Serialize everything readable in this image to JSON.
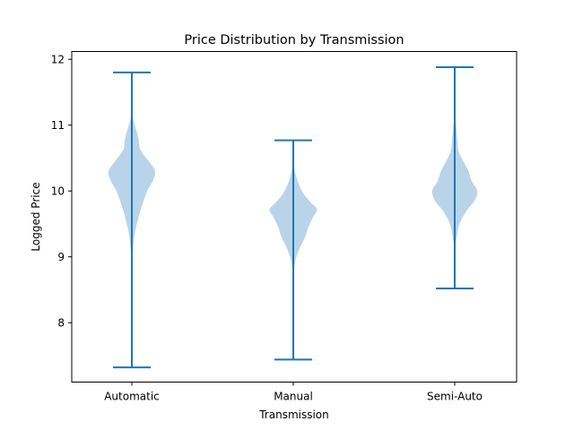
{
  "chart_data": {
    "type": "violin",
    "title": "Price Distribution by Transmission",
    "xlabel": "Transmission",
    "ylabel": "Logged Price",
    "categories": [
      "Automatic",
      "Manual",
      "Semi-Auto"
    ],
    "ylim": [
      7.1,
      12.1
    ],
    "yticks": [
      8,
      9,
      10,
      11,
      12
    ],
    "grid": false,
    "colors": {
      "body": "#b9d4e9",
      "line": "#1f77b4"
    },
    "series": [
      {
        "category": "Automatic",
        "min": 7.32,
        "max": 11.8,
        "profile": [
          [
            8.9,
            0.0
          ],
          [
            9.3,
            0.06
          ],
          [
            9.6,
            0.17
          ],
          [
            9.8,
            0.27
          ],
          [
            10.0,
            0.39
          ],
          [
            10.15,
            0.53
          ],
          [
            10.3,
            0.59
          ],
          [
            10.45,
            0.43
          ],
          [
            10.55,
            0.3
          ],
          [
            10.65,
            0.2
          ],
          [
            10.8,
            0.17
          ],
          [
            10.95,
            0.1
          ],
          [
            11.1,
            0.03
          ],
          [
            11.18,
            0.0
          ]
        ]
      },
      {
        "category": "Manual",
        "min": 7.44,
        "max": 10.77,
        "profile": [
          [
            8.6,
            0.0
          ],
          [
            8.9,
            0.04
          ],
          [
            9.1,
            0.14
          ],
          [
            9.3,
            0.3
          ],
          [
            9.45,
            0.38
          ],
          [
            9.6,
            0.5
          ],
          [
            9.72,
            0.6
          ],
          [
            9.82,
            0.45
          ],
          [
            9.95,
            0.27
          ],
          [
            10.1,
            0.14
          ],
          [
            10.25,
            0.06
          ],
          [
            10.38,
            0.02
          ],
          [
            10.45,
            0.0
          ]
        ]
      },
      {
        "category": "Semi-Auto",
        "min": 8.52,
        "max": 11.88,
        "profile": [
          [
            9.1,
            0.0
          ],
          [
            9.3,
            0.05
          ],
          [
            9.5,
            0.12
          ],
          [
            9.7,
            0.3
          ],
          [
            9.85,
            0.5
          ],
          [
            10.0,
            0.57
          ],
          [
            10.15,
            0.43
          ],
          [
            10.3,
            0.35
          ],
          [
            10.45,
            0.22
          ],
          [
            10.6,
            0.1
          ],
          [
            10.75,
            0.07
          ],
          [
            10.95,
            0.04
          ],
          [
            11.1,
            0.01
          ],
          [
            11.15,
            0.0
          ]
        ]
      }
    ]
  }
}
